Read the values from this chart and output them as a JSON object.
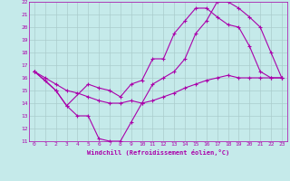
{
  "xlabel": "Windchill (Refroidissement éolien,°C)",
  "bg_color": "#c5eaea",
  "grid_color": "#aacccc",
  "line_color": "#aa00aa",
  "xlim": [
    -0.5,
    23.5
  ],
  "ylim": [
    11,
    22
  ],
  "xticks": [
    0,
    1,
    2,
    3,
    4,
    5,
    6,
    7,
    8,
    9,
    10,
    11,
    12,
    13,
    14,
    15,
    16,
    17,
    18,
    19,
    20,
    21,
    22,
    23
  ],
  "yticks": [
    11,
    12,
    13,
    14,
    15,
    16,
    17,
    18,
    19,
    20,
    21,
    22
  ],
  "line1_x": [
    0,
    1,
    2,
    3,
    4,
    5,
    6,
    7,
    8,
    9,
    10,
    11,
    12,
    13,
    14,
    15,
    16,
    17,
    18,
    19,
    20,
    21,
    22,
    23
  ],
  "line1_y": [
    16.5,
    16.0,
    15.5,
    15.0,
    14.8,
    14.5,
    14.2,
    14.0,
    14.0,
    14.2,
    14.0,
    14.2,
    14.5,
    14.8,
    15.2,
    15.5,
    15.8,
    16.0,
    16.2,
    16.0,
    16.0,
    16.0,
    16.0,
    16.0
  ],
  "line2_x": [
    0,
    1,
    2,
    3,
    4,
    5,
    6,
    7,
    8,
    9,
    10,
    11,
    12,
    13,
    14,
    15,
    16,
    17,
    18,
    19,
    20,
    21,
    22,
    23
  ],
  "line2_y": [
    16.5,
    15.8,
    15.0,
    13.8,
    13.0,
    13.0,
    11.2,
    11.0,
    11.0,
    12.5,
    14.0,
    15.5,
    16.0,
    16.5,
    17.5,
    19.5,
    20.5,
    22.0,
    22.0,
    21.5,
    20.8,
    20.0,
    18.0,
    16.0
  ],
  "line3_x": [
    0,
    2,
    3,
    5,
    6,
    7,
    8,
    9,
    10,
    11,
    12,
    13,
    14,
    15,
    16,
    17,
    18,
    19,
    20,
    21,
    22,
    23
  ],
  "line3_y": [
    16.5,
    15.0,
    13.8,
    15.5,
    15.2,
    15.0,
    14.5,
    15.5,
    15.8,
    17.5,
    17.5,
    19.5,
    20.5,
    21.5,
    21.5,
    20.8,
    20.2,
    20.0,
    18.5,
    16.5,
    16.0,
    16.0
  ]
}
